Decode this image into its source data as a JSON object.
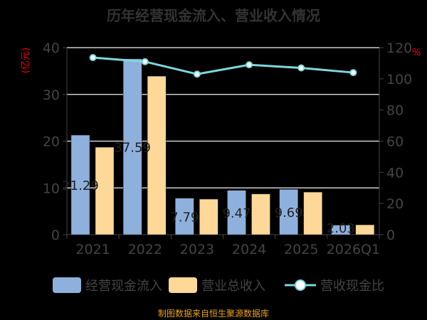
{
  "title": "历年经营现金流入、营业收入情况",
  "footer": "制图数据来自恒生聚源数据库",
  "colors": {
    "cash": "#8eb0dd",
    "revenue": "#fdd899",
    "ratio": "#7fd6dc",
    "axis_unit": "#ff0000",
    "text": "#444444"
  },
  "chart_data": {
    "type": "bar",
    "categories": [
      "2021",
      "2022",
      "2023",
      "2024",
      "2025",
      "2026Q1"
    ],
    "series": [
      {
        "name": "经营现金流入",
        "type": "bar",
        "axis": "left",
        "values": [
          21.29,
          37.59,
          7.79,
          9.47,
          9.69,
          2.03
        ],
        "labels": [
          "21.29",
          "37.59",
          "7.79",
          "9.47",
          "9.69",
          "2.03"
        ]
      },
      {
        "name": "营业总收入",
        "type": "bar",
        "axis": "left",
        "values": [
          18.7,
          33.9,
          7.6,
          8.7,
          9.1,
          2.1
        ]
      },
      {
        "name": "营收现金比",
        "type": "line",
        "axis": "right",
        "values": [
          113.6,
          111,
          103,
          109,
          107,
          104
        ]
      }
    ],
    "yleft": {
      "label": "(亿元)",
      "lim": [
        0,
        40
      ],
      "ticks": [
        0,
        10,
        20,
        30,
        40
      ]
    },
    "yright": {
      "label": "%",
      "lim": [
        0,
        120
      ],
      "ticks": [
        0,
        20,
        40,
        60,
        80,
        100,
        120
      ]
    },
    "grid": true,
    "legend": "bottom"
  }
}
